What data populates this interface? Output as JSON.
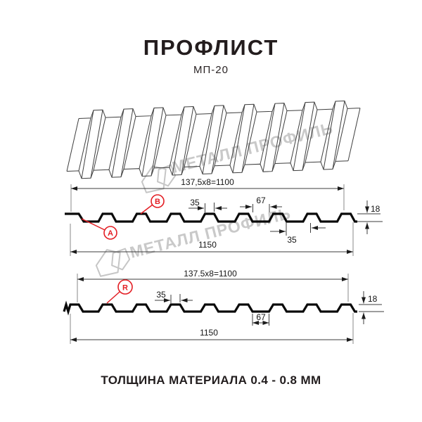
{
  "title": "ПРОФЛИСТ",
  "subtitle": "МП-20",
  "footer": "ТОЛЩИНА МАТЕРИАЛА 0.4 - 0.8 ММ",
  "watermark": {
    "brand": "МЕТАЛЛ ПРОФИЛЬ"
  },
  "colors": {
    "accent_red": "#e31e24",
    "line_black": "#0a0a0a",
    "watermark_gray": "#c9c9c9"
  },
  "sections": {
    "b": {
      "variant_a": "A",
      "variant_b": "B",
      "top_dim": "137,5x8=1100",
      "overall_width": "1150",
      "rib_top": "35",
      "valley": "67",
      "height": "18",
      "rib_base": "35"
    },
    "r": {
      "variant_r": "R",
      "top_dim": "137.5x8=1100",
      "overall_width": "1150",
      "rib_top": "35",
      "valley": "67",
      "height": "18"
    }
  }
}
